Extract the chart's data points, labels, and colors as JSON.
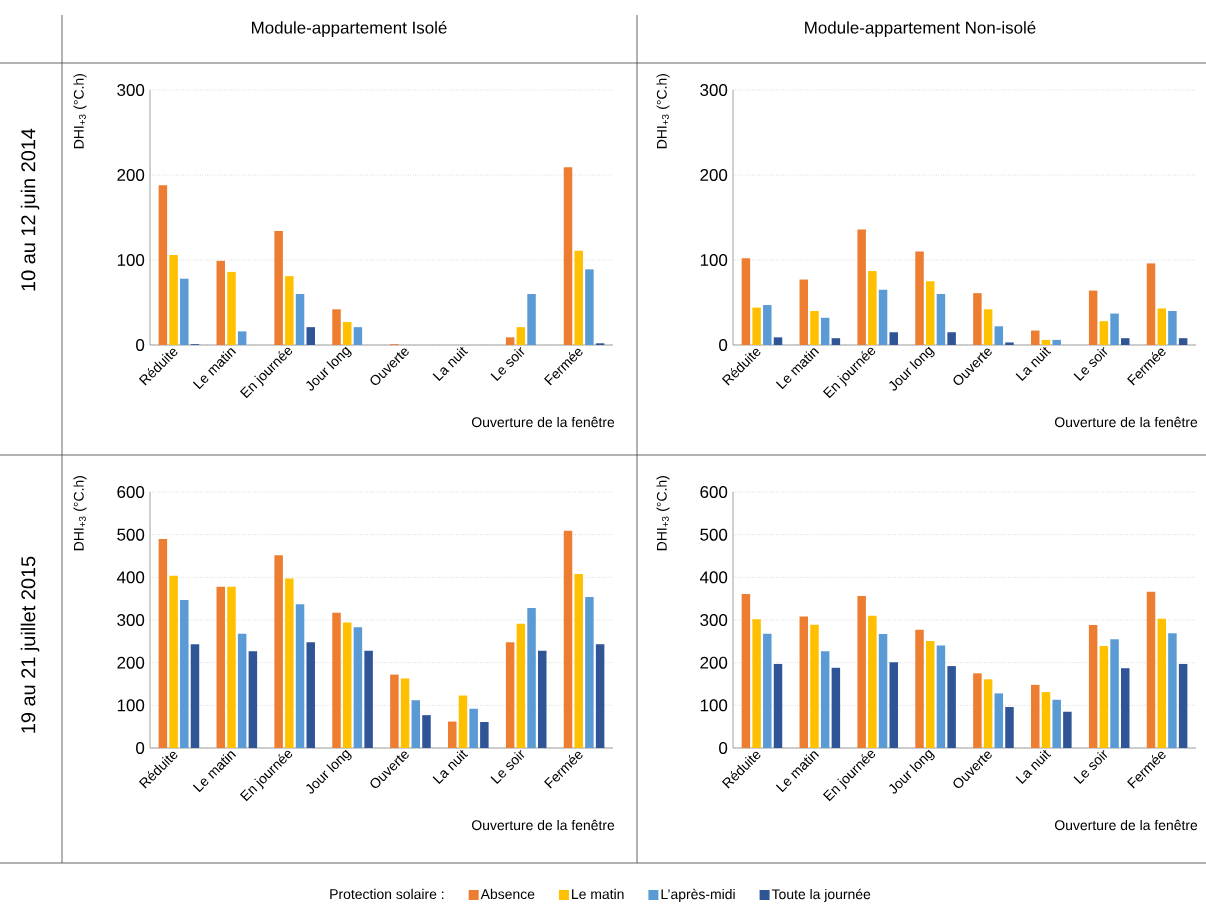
{
  "chart_data": [
    {
      "type": "bar",
      "title": "Module-appartement Isolé",
      "xlabel": "Ouverture de la fenêtre",
      "ylabel": "DHI$_{+3}$ (°C.h)",
      "annotations": [
        "10 au 12 juin 2014"
      ],
      "legend_title": "Protection solaire :",
      "legend": "bottom",
      "grid": "y",
      "categories": [
        "Réduite",
        "Le matin",
        "En journée",
        "Jour long",
        "Ouverte",
        "La nuit",
        "Le soir",
        "Fermée"
      ],
      "ylim": [
        0,
        300
      ],
      "yticks": [
        0,
        100,
        200,
        300
      ],
      "series": [
        {
          "name": "Absence",
          "color": "#ed7d31",
          "values": [
            188,
            99,
            134,
            42,
            1,
            0,
            9,
            209
          ]
        },
        {
          "name": "Le matin",
          "color": "#ffc000",
          "values": [
            106,
            86,
            81,
            27,
            0,
            0,
            21,
            111
          ]
        },
        {
          "name": "L’après-midi",
          "color": "#5b9bd5",
          "values": [
            78,
            16,
            60,
            21,
            0,
            0,
            60,
            89
          ]
        },
        {
          "name": "Toute la journée",
          "color": "#2f5597",
          "values": [
            1,
            0,
            21,
            0,
            0,
            0,
            0,
            2
          ]
        }
      ]
    },
    {
      "type": "bar",
      "title": "Module-appartement Non-isolé",
      "xlabel": "Ouverture de la fenêtre",
      "ylabel": "DHI$_{+3}$ (°C.h)",
      "grid": "y",
      "categories": [
        "Réduite",
        "Le matin",
        "En journée",
        "Jour long",
        "Ouverte",
        "La nuit",
        "Le soir",
        "Fermée"
      ],
      "ylim": [
        0,
        300
      ],
      "yticks": [
        0,
        100,
        200,
        300
      ],
      "series": [
        {
          "color": "#ed7d31",
          "values": [
            102,
            77,
            136,
            110,
            61,
            17,
            64,
            96
          ]
        },
        {
          "color": "#ffc000",
          "values": [
            44,
            40,
            87,
            75,
            42,
            6,
            28,
            43
          ]
        },
        {
          "color": "#5b9bd5",
          "values": [
            47,
            32,
            65,
            60,
            22,
            6,
            37,
            40
          ]
        },
        {
          "color": "#2f5597",
          "values": [
            9,
            8,
            15,
            15,
            3,
            0,
            8,
            8
          ]
        }
      ]
    },
    {
      "type": "bar",
      "xlabel": "Ouverture de la fenêtre",
      "ylabel": "DHI$_{+3}$ (°C.h)",
      "annotations": [
        "19 au 21 juillet 2015"
      ],
      "grid": "y",
      "categories": [
        "Réduite",
        "Le matin",
        "En journée",
        "Jour long",
        "Ouverte",
        "La nuit",
        "Le soir",
        "Fermée"
      ],
      "ylim": [
        0,
        600
      ],
      "yticks": [
        0,
        100,
        200,
        300,
        400,
        500,
        600
      ],
      "series": [
        {
          "color": "#ed7d31",
          "values": [
            490,
            378,
            452,
            317,
            172,
            62,
            248,
            509
          ]
        },
        {
          "color": "#ffc000",
          "values": [
            404,
            378,
            397,
            294,
            163,
            123,
            291,
            408
          ]
        },
        {
          "color": "#5b9bd5",
          "values": [
            347,
            268,
            337,
            283,
            112,
            92,
            328,
            354
          ]
        },
        {
          "color": "#2f5597",
          "values": [
            243,
            227,
            248,
            228,
            77,
            61,
            228,
            243
          ]
        }
      ]
    },
    {
      "type": "bar",
      "xlabel": "Ouverture de la fenêtre",
      "ylabel": "DHI$_{+3}$ (°C.h)",
      "grid": "y",
      "categories": [
        "Réduite",
        "Le matin",
        "En journée",
        "Jour long",
        "Ouverte",
        "La nuit",
        "Le soir",
        "Fermée"
      ],
      "ylim": [
        0,
        600
      ],
      "yticks": [
        0,
        100,
        200,
        300,
        400,
        500,
        600
      ],
      "series": [
        {
          "color": "#ed7d31",
          "values": [
            361,
            308,
            356,
            277,
            175,
            148,
            288,
            366
          ]
        },
        {
          "color": "#ffc000",
          "values": [
            302,
            289,
            310,
            251,
            161,
            131,
            239,
            303
          ]
        },
        {
          "color": "#5b9bd5",
          "values": [
            268,
            227,
            267,
            240,
            128,
            113,
            255,
            269
          ]
        },
        {
          "color": "#2f5597",
          "values": [
            197,
            188,
            201,
            192,
            96,
            85,
            187,
            197
          ]
        }
      ]
    }
  ]
}
